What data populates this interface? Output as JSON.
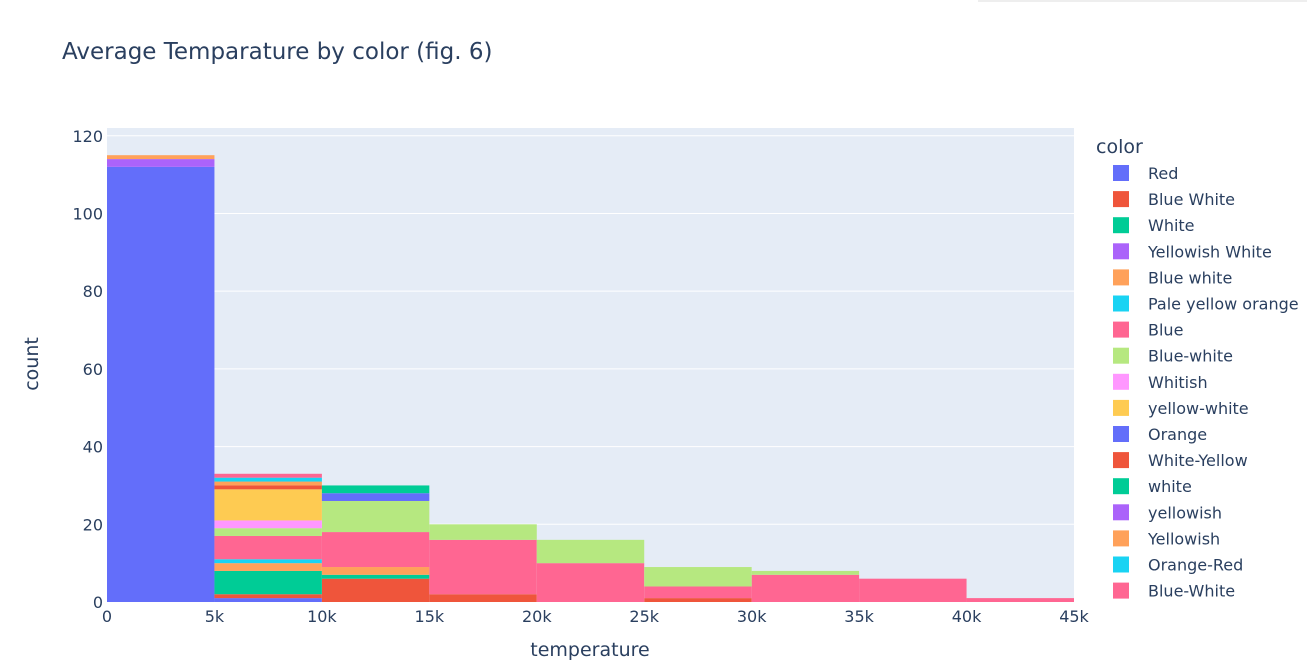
{
  "chart_data": {
    "type": "bar",
    "title": "Average Temparature by color (fig. 6)",
    "xlabel": "temperature",
    "ylabel": "count",
    "x_bins": [
      [
        0,
        5000
      ],
      [
        5000,
        10000
      ],
      [
        10000,
        15000
      ],
      [
        15000,
        20000
      ],
      [
        20000,
        25000
      ],
      [
        25000,
        30000
      ],
      [
        30000,
        35000
      ],
      [
        35000,
        40000
      ],
      [
        40000,
        45000
      ]
    ],
    "xlim": [
      0,
      45000
    ],
    "ylim": [
      0,
      122
    ],
    "x_ticks": [
      {
        "value": 0,
        "label": "0"
      },
      {
        "value": 5000,
        "label": "5k"
      },
      {
        "value": 10000,
        "label": "10k"
      },
      {
        "value": 15000,
        "label": "15k"
      },
      {
        "value": 20000,
        "label": "20k"
      },
      {
        "value": 25000,
        "label": "25k"
      },
      {
        "value": 30000,
        "label": "30k"
      },
      {
        "value": 35000,
        "label": "35k"
      },
      {
        "value": 40000,
        "label": "40k"
      },
      {
        "value": 45000,
        "label": "45k"
      }
    ],
    "y_ticks": [
      {
        "value": 0,
        "label": "0"
      },
      {
        "value": 20,
        "label": "20"
      },
      {
        "value": 40,
        "label": "40"
      },
      {
        "value": 60,
        "label": "60"
      },
      {
        "value": 80,
        "label": "80"
      },
      {
        "value": 100,
        "label": "100"
      },
      {
        "value": 120,
        "label": "120"
      }
    ],
    "grid": true,
    "legend_title": "color",
    "legend_position": "right",
    "series": [
      {
        "name": "Red",
        "color": "#636efa",
        "values": [
          112,
          1,
          0,
          0,
          0,
          0,
          0,
          0,
          0
        ]
      },
      {
        "name": "Blue White",
        "color": "#EF553B",
        "values": [
          0,
          1,
          6,
          2,
          0,
          1,
          0,
          0,
          0
        ]
      },
      {
        "name": "White",
        "color": "#00cc96",
        "values": [
          0,
          6,
          1,
          0,
          0,
          0,
          0,
          0,
          0
        ]
      },
      {
        "name": "Yellowish White",
        "color": "#ab63fa",
        "values": [
          2,
          0,
          0,
          0,
          0,
          0,
          0,
          0,
          0
        ]
      },
      {
        "name": "Blue white",
        "color": "#FFA15A",
        "values": [
          1,
          2,
          2,
          0,
          0,
          0,
          0,
          0,
          0
        ]
      },
      {
        "name": "Pale yellow orange",
        "color": "#19d3f3",
        "values": [
          0,
          1,
          0,
          0,
          0,
          0,
          0,
          0,
          0
        ]
      },
      {
        "name": "Blue",
        "color": "#FF6692",
        "values": [
          0,
          6,
          9,
          14,
          10,
          3,
          7,
          6,
          1
        ]
      },
      {
        "name": "Blue-white",
        "color": "#B6E880",
        "values": [
          0,
          2,
          8,
          4,
          6,
          5,
          1,
          0,
          0
        ]
      },
      {
        "name": "Whitish",
        "color": "#FF97FF",
        "values": [
          0,
          2,
          0,
          0,
          0,
          0,
          0,
          0,
          0
        ]
      },
      {
        "name": "yellow-white",
        "color": "#FECB52",
        "values": [
          0,
          8,
          0,
          0,
          0,
          0,
          0,
          0,
          0
        ]
      },
      {
        "name": "Orange",
        "color": "#636efa",
        "values": [
          0,
          0,
          2,
          0,
          0,
          0,
          0,
          0,
          0
        ]
      },
      {
        "name": "White-Yellow",
        "color": "#EF553B",
        "values": [
          0,
          1,
          0,
          0,
          0,
          0,
          0,
          0,
          0
        ]
      },
      {
        "name": "white",
        "color": "#00cc96",
        "values": [
          0,
          0,
          2,
          0,
          0,
          0,
          0,
          0,
          0
        ]
      },
      {
        "name": "yellowish",
        "color": "#ab63fa",
        "values": [
          0,
          0,
          0,
          0,
          0,
          0,
          0,
          0,
          0
        ]
      },
      {
        "name": "Yellowish",
        "color": "#FFA15A",
        "values": [
          0,
          1,
          0,
          0,
          0,
          0,
          0,
          0,
          0
        ]
      },
      {
        "name": "Orange-Red",
        "color": "#19d3f3",
        "values": [
          0,
          1,
          0,
          0,
          0,
          0,
          0,
          0,
          0
        ]
      },
      {
        "name": "Blue-White",
        "color": "#FF6692",
        "values": [
          0,
          1,
          0,
          0,
          0,
          0,
          0,
          0,
          0
        ]
      }
    ]
  }
}
